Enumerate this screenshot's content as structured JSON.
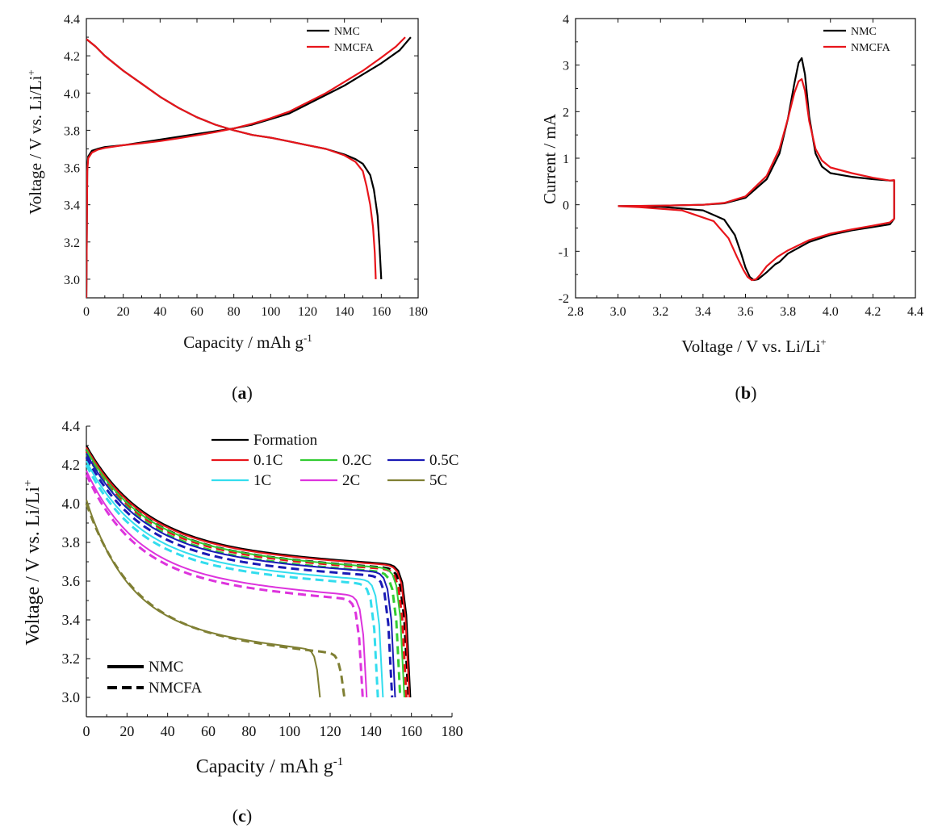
{
  "chart_data": [
    {
      "panel": "a",
      "panel_label": "a",
      "type": "line",
      "xlabel": "Capacity / mAh g",
      "xlabel_sup": "-1",
      "ylabel": "Voltage / V vs. Li/Li",
      "ylabel_sup": "+",
      "xlim": [
        0,
        180
      ],
      "ylim": [
        2.9,
        4.4
      ],
      "xticks": [
        0,
        20,
        40,
        60,
        80,
        100,
        120,
        140,
        160,
        180
      ],
      "yticks": [
        3.0,
        3.2,
        3.4,
        3.6,
        3.8,
        4.0,
        4.2,
        4.4
      ],
      "tick_decimals": {
        "x": 0,
        "y": 1
      },
      "legend": {
        "placement": "top-right",
        "entries": [
          "NMC",
          "NMCFA"
        ]
      },
      "series": [
        {
          "name": "NMC charge",
          "legend": "NMC",
          "color": "#000000",
          "x": [
            0,
            0.5,
            1,
            3,
            6,
            10,
            20,
            30,
            40,
            50,
            60,
            70,
            80,
            90,
            100,
            110,
            120,
            130,
            140,
            150,
            160,
            170,
            176
          ],
          "y": [
            2.9,
            3.6,
            3.66,
            3.69,
            3.7,
            3.71,
            3.72,
            3.735,
            3.75,
            3.765,
            3.78,
            3.795,
            3.81,
            3.83,
            3.86,
            3.89,
            3.94,
            3.99,
            4.04,
            4.1,
            4.16,
            4.23,
            4.3
          ]
        },
        {
          "name": "NMC discharge",
          "legend": "NMC",
          "color": "#000000",
          "x": [
            0,
            5,
            10,
            20,
            30,
            40,
            50,
            60,
            70,
            80,
            90,
            100,
            110,
            120,
            130,
            140,
            146,
            150,
            154,
            156,
            158,
            159,
            160
          ],
          "y": [
            4.29,
            4.25,
            4.2,
            4.12,
            4.05,
            3.98,
            3.92,
            3.87,
            3.83,
            3.8,
            3.775,
            3.76,
            3.74,
            3.72,
            3.7,
            3.67,
            3.645,
            3.62,
            3.56,
            3.48,
            3.34,
            3.18,
            3.0
          ]
        },
        {
          "name": "NMCFA charge",
          "legend": "NMCFA",
          "color": "#e8151b",
          "x": [
            0,
            0.5,
            1,
            3,
            6,
            10,
            20,
            30,
            40,
            50,
            60,
            70,
            80,
            90,
            100,
            110,
            120,
            130,
            140,
            150,
            160,
            168,
            173
          ],
          "y": [
            2.9,
            3.58,
            3.65,
            3.68,
            3.695,
            3.705,
            3.72,
            3.73,
            3.742,
            3.757,
            3.773,
            3.79,
            3.81,
            3.835,
            3.865,
            3.9,
            3.95,
            4.0,
            4.06,
            4.12,
            4.19,
            4.25,
            4.3
          ]
        },
        {
          "name": "NMCFA discharge",
          "legend": "NMCFA",
          "color": "#e8151b",
          "x": [
            0,
            5,
            10,
            20,
            30,
            40,
            50,
            60,
            70,
            80,
            90,
            100,
            110,
            120,
            130,
            140,
            146,
            150,
            152,
            154,
            155.5,
            156.5,
            157
          ],
          "y": [
            4.29,
            4.25,
            4.2,
            4.12,
            4.05,
            3.98,
            3.92,
            3.87,
            3.83,
            3.8,
            3.775,
            3.76,
            3.74,
            3.72,
            3.7,
            3.665,
            3.63,
            3.58,
            3.5,
            3.4,
            3.28,
            3.14,
            3.0
          ]
        }
      ]
    },
    {
      "panel": "b",
      "panel_label": "b",
      "type": "line",
      "xlabel": "Voltage / V vs. Li/Li",
      "xlabel_sup": "+",
      "ylabel": "Current / mA",
      "ylabel_sup": "",
      "xlim": [
        2.8,
        4.4
      ],
      "ylim": [
        -2,
        4
      ],
      "xticks": [
        2.8,
        3.0,
        3.2,
        3.4,
        3.6,
        3.8,
        4.0,
        4.2,
        4.4
      ],
      "yticks": [
        -2,
        -1,
        0,
        1,
        2,
        3,
        4
      ],
      "tick_decimals": {
        "x": 1,
        "y": 0
      },
      "legend": {
        "placement": "top-right",
        "entries": [
          "NMC",
          "NMCFA"
        ]
      },
      "series": [
        {
          "name": "NMC",
          "legend": "NMC",
          "color": "#000000",
          "x": [
            3.0,
            3.2,
            3.4,
            3.5,
            3.6,
            3.7,
            3.76,
            3.8,
            3.83,
            3.85,
            3.865,
            3.88,
            3.9,
            3.93,
            3.96,
            4.0,
            4.1,
            4.2,
            4.28,
            4.3,
            4.3,
            4.28,
            4.2,
            4.1,
            4.0,
            3.9,
            3.8,
            3.76,
            3.74,
            3.7,
            3.66,
            3.64,
            3.62,
            3.6,
            3.58,
            3.55,
            3.5,
            3.4,
            3.2,
            3.0
          ],
          "y": [
            -0.03,
            -0.02,
            0.0,
            0.03,
            0.15,
            0.55,
            1.1,
            1.85,
            2.6,
            3.05,
            3.15,
            2.8,
            1.9,
            1.1,
            0.82,
            0.68,
            0.6,
            0.55,
            0.52,
            0.52,
            -0.3,
            -0.42,
            -0.48,
            -0.55,
            -0.65,
            -0.8,
            -1.05,
            -1.23,
            -1.28,
            -1.45,
            -1.6,
            -1.62,
            -1.55,
            -1.35,
            -1.05,
            -0.65,
            -0.32,
            -0.12,
            -0.04,
            -0.03
          ]
        },
        {
          "name": "NMCFA",
          "legend": "NMCFA",
          "color": "#e8151b",
          "x": [
            3.0,
            3.2,
            3.4,
            3.5,
            3.6,
            3.7,
            3.76,
            3.8,
            3.83,
            3.85,
            3.865,
            3.88,
            3.9,
            3.93,
            3.96,
            4.0,
            4.1,
            4.2,
            4.28,
            4.3,
            4.3,
            4.28,
            4.2,
            4.1,
            4.0,
            3.9,
            3.8,
            3.75,
            3.7,
            3.67,
            3.65,
            3.63,
            3.61,
            3.59,
            3.56,
            3.52,
            3.45,
            3.3,
            3.1,
            3.0
          ],
          "y": [
            -0.03,
            -0.02,
            0.0,
            0.04,
            0.18,
            0.62,
            1.2,
            1.85,
            2.4,
            2.65,
            2.7,
            2.45,
            1.8,
            1.2,
            0.95,
            0.8,
            0.68,
            0.58,
            0.52,
            0.53,
            -0.3,
            -0.38,
            -0.45,
            -0.53,
            -0.62,
            -0.76,
            -0.98,
            -1.12,
            -1.32,
            -1.5,
            -1.6,
            -1.62,
            -1.55,
            -1.4,
            -1.12,
            -0.72,
            -0.35,
            -0.12,
            -0.05,
            -0.03
          ]
        }
      ]
    },
    {
      "panel": "c",
      "panel_label": "c",
      "type": "line",
      "xlabel": "Capacity / mAh g",
      "xlabel_sup": "-1",
      "ylabel": "Voltage / V vs. Li/Li",
      "ylabel_sup": "+",
      "xlim": [
        0,
        180
      ],
      "ylim": [
        2.9,
        4.4
      ],
      "xticks": [
        0,
        20,
        40,
        60,
        80,
        100,
        120,
        140,
        160,
        180
      ],
      "yticks": [
        3.0,
        3.2,
        3.4,
        3.6,
        3.8,
        4.0,
        4.2,
        4.4
      ],
      "tick_decimals": {
        "x": 0,
        "y": 1
      },
      "legend": {
        "placement": "top-right",
        "entries": [
          "Formation",
          "0.1C",
          "0.2C",
          "0.5C",
          "1C",
          "2C",
          "5C"
        ]
      },
      "style_legend": {
        "placement": "bottom-left",
        "entries": [
          "NMC",
          "NMCFA"
        ]
      },
      "rates": [
        {
          "label": "Formation",
          "color": "#000000",
          "start": 4.3,
          "mid": 3.78,
          "plateau": 3.68,
          "end_nmc": 159.5,
          "end_nmcfa": 158.5
        },
        {
          "label": "0.1C",
          "color": "#e8151b",
          "start": 4.29,
          "mid": 3.775,
          "plateau": 3.675,
          "end_nmc": 159,
          "end_nmcfa": 157.5
        },
        {
          "label": "0.2C",
          "color": "#33cc33",
          "start": 4.28,
          "mid": 3.765,
          "plateau": 3.66,
          "end_nmc": 156.5,
          "end_nmcfa": 154.5
        },
        {
          "label": "0.5C",
          "color": "#1a1ab5",
          "start": 4.26,
          "mid": 3.74,
          "plateau": 3.64,
          "end_nmc": 152,
          "end_nmcfa": 150.5
        },
        {
          "label": "1C",
          "color": "#33ddee",
          "start": 4.22,
          "mid": 3.7,
          "plateau": 3.6,
          "end_nmc": 146,
          "end_nmcfa": 143.5
        },
        {
          "label": "2C",
          "color": "#dd33dd",
          "start": 4.17,
          "mid": 3.63,
          "plateau": 3.52,
          "end_nmc": 138,
          "end_nmcfa": 136
        },
        {
          "label": "5C",
          "color": "#7f7f33",
          "start": 4.02,
          "mid": 3.37,
          "plateau": 3.24,
          "end_nmc": 115,
          "end_nmcfa": 127
        }
      ]
    }
  ]
}
